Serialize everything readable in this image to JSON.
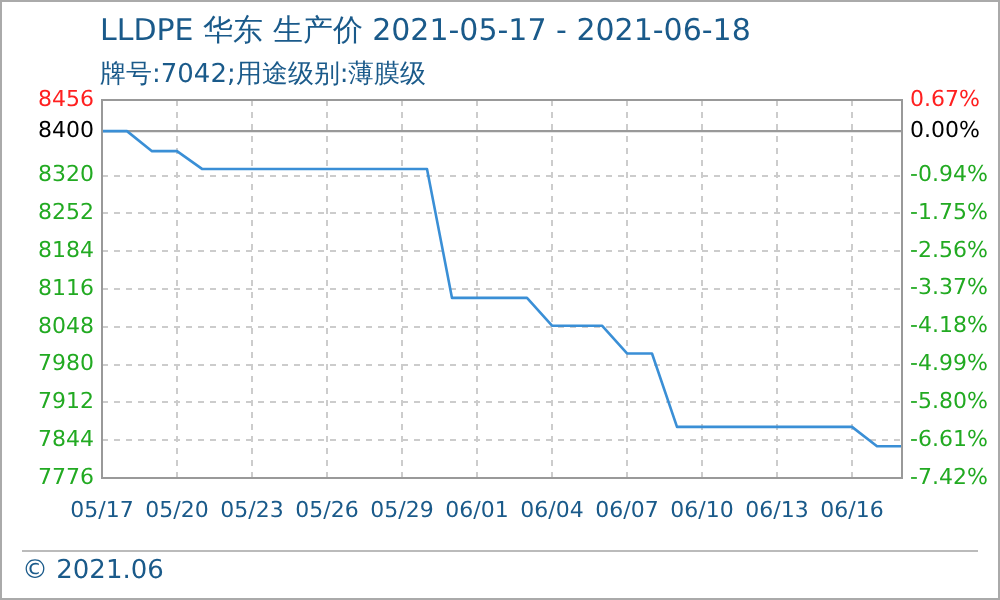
{
  "chart_data": {
    "type": "line",
    "title": "LLDPE 华东 生产价 2021-05-17 - 2021-06-18",
    "subtitle": "牌号:7042;用途级别:薄膜级",
    "x": [
      "2021-05-17",
      "2021-05-18",
      "2021-05-19",
      "2021-05-20",
      "2021-05-21",
      "2021-05-22",
      "2021-05-23",
      "2021-05-24",
      "2021-05-25",
      "2021-05-26",
      "2021-05-27",
      "2021-05-28",
      "2021-05-29",
      "2021-05-30",
      "2021-05-31",
      "2021-06-01",
      "2021-06-02",
      "2021-06-03",
      "2021-06-04",
      "2021-06-05",
      "2021-06-06",
      "2021-06-07",
      "2021-06-08",
      "2021-06-09",
      "2021-06-10",
      "2021-06-11",
      "2021-06-12",
      "2021-06-13",
      "2021-06-14",
      "2021-06-15",
      "2021-06-16",
      "2021-06-17",
      "2021-06-18"
    ],
    "series": [
      {
        "color": "#3a8fd6",
        "values": [
          8400,
          8400,
          8364,
          8364,
          8332,
          8332,
          8332,
          8332,
          8332,
          8332,
          8332,
          8332,
          8332,
          8332,
          8100,
          8100,
          8100,
          8100,
          8050,
          8050,
          8050,
          8000,
          8000,
          7868,
          7868,
          7868,
          7868,
          7868,
          7868,
          7868,
          7868,
          7833,
          7833
        ]
      }
    ],
    "xlim": [
      "2021-05-17",
      "2021-06-18"
    ],
    "xticks": [
      {
        "value": "2021-05-17",
        "label": "05/17"
      },
      {
        "value": "2021-05-20",
        "label": "05/20"
      },
      {
        "value": "2021-05-23",
        "label": "05/23"
      },
      {
        "value": "2021-05-26",
        "label": "05/26"
      },
      {
        "value": "2021-05-29",
        "label": "05/29"
      },
      {
        "value": "2021-06-01",
        "label": "06/01"
      },
      {
        "value": "2021-06-04",
        "label": "06/04"
      },
      {
        "value": "2021-06-07",
        "label": "06/07"
      },
      {
        "value": "2021-06-10",
        "label": "06/10"
      },
      {
        "value": "2021-06-13",
        "label": "06/13"
      },
      {
        "value": "2021-06-16",
        "label": "06/16"
      }
    ],
    "ylim": [
      7776,
      8456
    ],
    "yticks": [
      7776,
      7844,
      7912,
      7980,
      8048,
      8116,
      8184,
      8252,
      8320,
      8400,
      8456
    ],
    "y2lim": [
      -7.42,
      0.67
    ],
    "y2ticks": [
      {
        "value": -7.42,
        "label": "-7.42%"
      },
      {
        "value": -6.61,
        "label": "-6.61%"
      },
      {
        "value": -5.8,
        "label": "-5.80%"
      },
      {
        "value": -4.99,
        "label": "-4.99%"
      },
      {
        "value": -4.18,
        "label": "-4.18%"
      },
      {
        "value": -3.37,
        "label": "-3.37%"
      },
      {
        "value": -2.56,
        "label": "-2.56%"
      },
      {
        "value": -1.75,
        "label": "-1.75%"
      },
      {
        "value": -0.94,
        "label": "-0.94%"
      },
      {
        "value": 0,
        "label": "0.00%"
      },
      {
        "value": 0.67,
        "label": "0.67%"
      }
    ],
    "ref_lines": [
      {
        "axis": "y",
        "value": 8400,
        "color": "#999999"
      }
    ],
    "grid": true,
    "legend": false,
    "marker": "none",
    "line_style": "solid",
    "annotations": [
      "© 2021.06"
    ]
  }
}
